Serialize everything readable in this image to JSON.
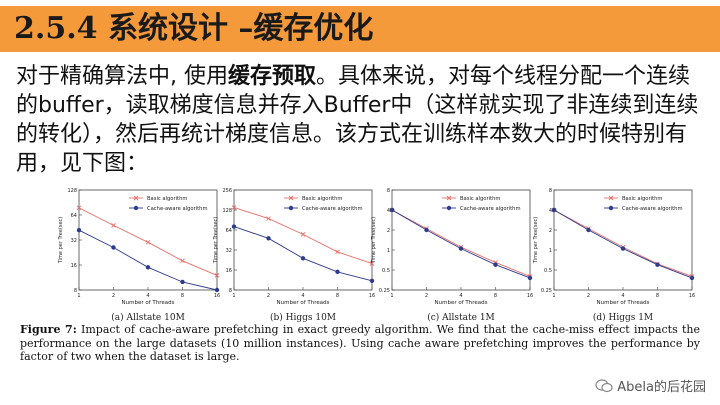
{
  "slide": {
    "title": "2.5.4 系统设计 –缓存优化",
    "body_pre": "对于精确算法中, 使用",
    "body_highlight": "缓存预取",
    "body_post": "。具体来说，对每个线程分配一个连续的buffer，读取梯度信息并存入Buffer中（这样就实现了非连续到连续的转化），然后再统计梯度信息。该方式在训练样本数大的时候特别有用，见下图：",
    "caption_label": "Figure 7:",
    "caption_text": "Impact of cache-aware prefetching in exact greedy algorithm. We find that the cache-miss effect impacts the performance on the large datasets (10 million instances). Using cache aware prefetching improves the performance by factor of two when the dataset is large.",
    "watermark": "Abela的后花园"
  },
  "colors": {
    "title_bg": "#f59a3a",
    "basic": "#e8706a",
    "cache": "#2d3c8c"
  },
  "chart_data": [
    {
      "type": "line",
      "subtitle": "(a) Allstate 10M",
      "xlabel": "Number of Threads",
      "ylabel": "Time per Tree(sec)",
      "x": [
        1,
        2,
        4,
        8,
        16
      ],
      "yscale": "log2",
      "yticks": [
        8,
        16,
        32,
        64,
        128
      ],
      "ylim": [
        8,
        128
      ],
      "legend": "top-right",
      "series": [
        {
          "name": "Basic algorithm",
          "values": [
            78,
            48,
            30,
            18,
            12
          ]
        },
        {
          "name": "Cache-aware algorithm",
          "values": [
            42,
            26,
            15,
            10,
            8
          ]
        }
      ]
    },
    {
      "type": "line",
      "subtitle": "(b) Higgs 10M",
      "xlabel": "Number of Threads",
      "ylabel": "Time per Tree(sec)",
      "x": [
        1,
        2,
        4,
        8,
        16
      ],
      "yscale": "log2",
      "yticks": [
        8,
        16,
        32,
        64,
        128,
        256
      ],
      "ylim": [
        8,
        256
      ],
      "legend": "top-right",
      "series": [
        {
          "name": "Basic algorithm",
          "values": [
            140,
            95,
            55,
            30,
            20
          ]
        },
        {
          "name": "Cache-aware algorithm",
          "values": [
            72,
            48,
            24,
            15,
            11
          ]
        }
      ]
    },
    {
      "type": "line",
      "subtitle": "(c) Allstate 1M",
      "xlabel": "Number of Threads",
      "ylabel": "Time per Tree(sec)",
      "x": [
        1,
        2,
        4,
        8,
        16
      ],
      "yscale": "log2",
      "yticks": [
        0.25,
        0.5,
        1,
        2,
        4,
        8
      ],
      "ylim": [
        0.25,
        8
      ],
      "legend": "top-right",
      "series": [
        {
          "name": "Basic algorithm",
          "values": [
            4,
            2.1,
            1.1,
            0.65,
            0.4
          ]
        },
        {
          "name": "Cache-aware algorithm",
          "values": [
            4,
            2,
            1.05,
            0.6,
            0.38
          ]
        }
      ]
    },
    {
      "type": "line",
      "subtitle": "(d) Higgs 1M",
      "xlabel": "Number of Threads",
      "ylabel": "Time per Tree(sec)",
      "x": [
        1,
        2,
        4,
        8,
        16
      ],
      "yscale": "log2",
      "yticks": [
        0.25,
        0.5,
        1,
        2,
        4,
        8
      ],
      "ylim": [
        0.25,
        8
      ],
      "legend": "top-right",
      "series": [
        {
          "name": "Basic algorithm",
          "values": [
            4,
            2.1,
            1.1,
            0.62,
            0.4
          ]
        },
        {
          "name": "Cache-aware algorithm",
          "values": [
            4,
            2,
            1.05,
            0.6,
            0.38
          ]
        }
      ]
    }
  ]
}
